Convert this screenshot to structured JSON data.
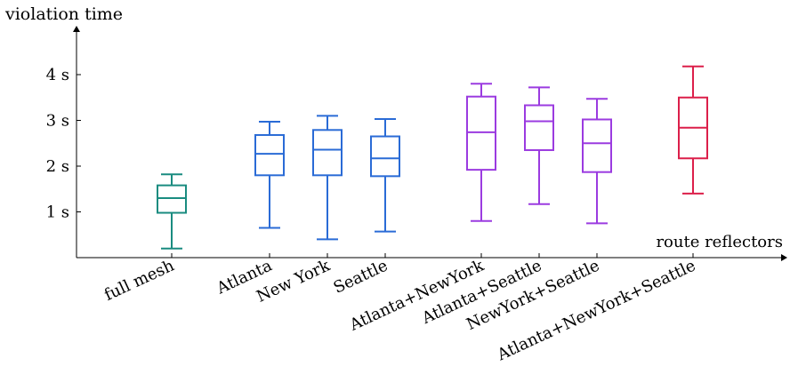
{
  "chart_data": {
    "type": "box",
    "ylabel": "violation time",
    "xlabel": "route reflectors",
    "y_unit": "s",
    "yticks": [
      1,
      2,
      3,
      4
    ],
    "ytick_labels": [
      "1 s",
      "2 s",
      "3 s",
      "4 s"
    ],
    "ylim": [
      0,
      4.75
    ],
    "categories": [
      "full mesh",
      "Atlanta",
      "New York",
      "Seattle",
      "Atlanta+NewYork",
      "Atlanta+Seattle",
      "NewYork+Seattle",
      "Atlanta+NewYork+Seattle"
    ],
    "boxes": [
      {
        "whisker_low": 0.2,
        "q1": 0.98,
        "median": 1.3,
        "q3": 1.58,
        "whisker_high": 1.82,
        "color": "#1a8c80"
      },
      {
        "whisker_low": 0.65,
        "q1": 1.8,
        "median": 2.27,
        "q3": 2.68,
        "whisker_high": 2.97,
        "color": "#2a6bd6"
      },
      {
        "whisker_low": 0.4,
        "q1": 1.8,
        "median": 2.36,
        "q3": 2.79,
        "whisker_high": 3.1,
        "color": "#2a6bd6"
      },
      {
        "whisker_low": 0.57,
        "q1": 1.78,
        "median": 2.17,
        "q3": 2.65,
        "whisker_high": 3.03,
        "color": "#2a6bd6"
      },
      {
        "whisker_low": 0.8,
        "q1": 1.92,
        "median": 2.74,
        "q3": 3.52,
        "whisker_high": 3.8,
        "color": "#9b3be0"
      },
      {
        "whisker_low": 1.17,
        "q1": 2.35,
        "median": 2.98,
        "q3": 3.33,
        "whisker_high": 3.72,
        "color": "#9b3be0"
      },
      {
        "whisker_low": 0.75,
        "q1": 1.87,
        "median": 2.5,
        "q3": 3.02,
        "whisker_high": 3.47,
        "color": "#9b3be0"
      },
      {
        "whisker_low": 1.4,
        "q1": 2.17,
        "median": 2.84,
        "q3": 3.5,
        "whisker_high": 4.18,
        "color": "#dc1f4a"
      }
    ]
  }
}
